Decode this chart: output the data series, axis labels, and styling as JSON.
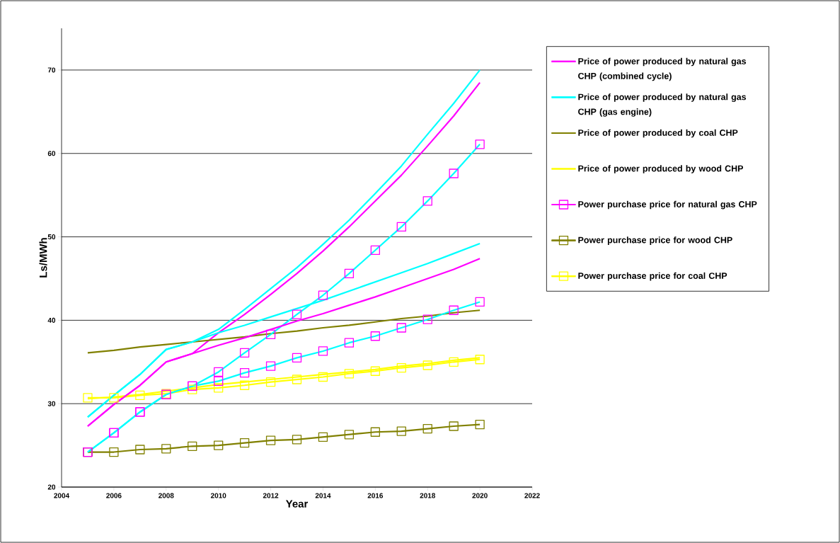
{
  "chart_data": {
    "type": "line",
    "xlabel": "Year",
    "ylabel": "Ls/MWh",
    "x": [
      2005,
      2006,
      2007,
      2008,
      2009,
      2010,
      2011,
      2012,
      2013,
      2014,
      2015,
      2016,
      2017,
      2018,
      2019,
      2020
    ],
    "xlim": [
      2004,
      2022
    ],
    "xticks": [
      2004,
      2006,
      2008,
      2010,
      2012,
      2014,
      2016,
      2018,
      2020,
      2022
    ],
    "ylim": [
      20,
      75
    ],
    "yticks": [
      20,
      30,
      40,
      50,
      60,
      70
    ],
    "grid": "y",
    "legend": "right",
    "line_style": "solid",
    "series": [
      {
        "name": "Price of power produced by natural gas CHP (combined cycle)",
        "color": "#ff00ff",
        "marker": "none",
        "values": [
          27.3,
          29.9,
          32.2,
          35.0,
          36.0,
          38.5,
          40.7,
          43.1,
          45.6,
          48.3,
          51.2,
          54.3,
          57.4,
          60.9,
          64.5,
          68.5
        ]
      },
      {
        "name": "Price of power produced by natural gas CHP (gas engine)",
        "color": "#00ffff",
        "marker": "none",
        "values": [
          28.4,
          31.0,
          33.5,
          36.5,
          37.4,
          38.9,
          41.3,
          43.8,
          46.3,
          49.1,
          52.0,
          55.2,
          58.5,
          62.3,
          66.0,
          70.0
        ]
      },
      {
        "name": "Price of power produced by coal CHP",
        "color": "#808000",
        "marker": "none",
        "values": [
          36.1,
          36.4,
          36.8,
          37.1,
          37.4,
          37.7,
          38.0,
          38.4,
          38.7,
          39.1,
          39.4,
          39.8,
          40.2,
          40.5,
          40.9,
          41.2
        ]
      },
      {
        "name": "Price of power produced by wood CHP",
        "color": "#ffff00",
        "marker": "none",
        "values": [
          30.6,
          30.8,
          31.1,
          31.5,
          31.9,
          32.3,
          32.6,
          32.9,
          33.2,
          33.5,
          33.8,
          34.1,
          34.5,
          34.8,
          35.2,
          35.5
        ]
      },
      {
        "name": "Power purchase price for natural gas CHP",
        "color": "#00ffff",
        "marker": "square",
        "colors": [
          "#ff00ff",
          "#ff00ff",
          "#ff00ff",
          "#ff00ff",
          "#ff00ff",
          "#ff00ff",
          "#ff00ff",
          "#ff00ff",
          "#ff00ff",
          "#ff00ff",
          "#ff00ff",
          "#ff00ff",
          "#ff00ff",
          "#ff00ff",
          "#ff00ff",
          "#ff00ff"
        ],
        "values": [
          24.2,
          26.5,
          29.0,
          31.1,
          32.1,
          33.8,
          36.1,
          38.3,
          40.7,
          43.0,
          45.6,
          48.4,
          51.2,
          54.3,
          57.6,
          61.1
        ]
      },
      {
        "name": "Power purchase price for wood CHP",
        "color": "#808000",
        "marker": "square",
        "values": [
          24.2,
          24.2,
          24.5,
          24.6,
          24.9,
          25.0,
          25.3,
          25.6,
          25.7,
          26.0,
          26.3,
          26.6,
          26.7,
          27.0,
          27.3,
          27.5
        ]
      },
      {
        "name": "Power purchase price for coal CHP",
        "color": "#ffff00",
        "marker": "square",
        "values": [
          30.7,
          30.7,
          31.0,
          31.2,
          31.7,
          31.9,
          32.2,
          32.6,
          32.9,
          33.2,
          33.6,
          33.9,
          34.3,
          34.6,
          35.0,
          35.3
        ]
      },
      {
        "color": "#ff00ff",
        "marker": "none",
        "values": [
          27.3,
          29.9,
          32.2,
          35.0,
          36.0,
          37.0,
          37.9,
          38.9,
          39.9,
          40.8,
          41.8,
          42.8,
          43.9,
          45.0,
          46.1,
          47.4
        ]
      },
      {
        "color": "#00ffff",
        "marker": "none",
        "values": [
          28.4,
          31.0,
          33.5,
          36.5,
          37.4,
          38.5,
          39.4,
          40.4,
          41.4,
          42.4,
          43.5,
          44.6,
          45.7,
          46.8,
          48.0,
          49.2
        ]
      },
      {
        "color": "#00ffff",
        "marker": "square",
        "colors": [
          "#ff00ff",
          "#ff00ff",
          "#ff00ff",
          "#ff00ff",
          "#ff00ff",
          "#ff00ff",
          "#ff00ff",
          "#ff00ff",
          "#ff00ff",
          "#ff00ff",
          "#ff00ff",
          "#ff00ff",
          "#ff00ff",
          "#ff00ff",
          "#ff00ff",
          "#ff00ff"
        ],
        "values": [
          24.2,
          26.5,
          29.0,
          31.1,
          32.1,
          32.7,
          33.7,
          34.5,
          35.5,
          36.3,
          37.3,
          38.1,
          39.1,
          40.1,
          41.2,
          42.2
        ]
      }
    ]
  }
}
